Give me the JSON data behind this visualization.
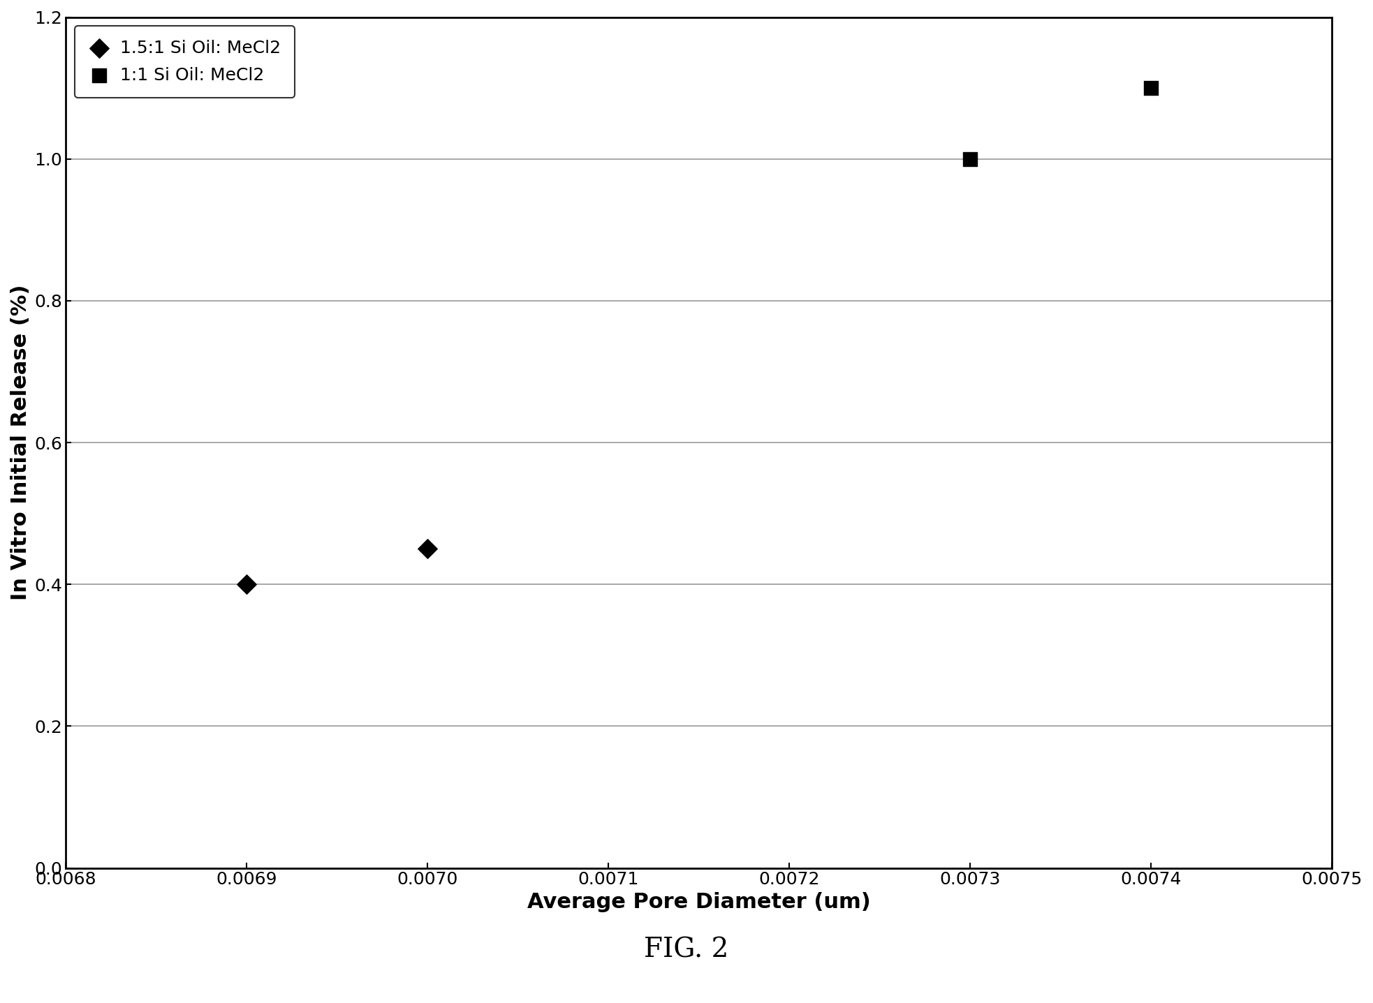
{
  "series1": {
    "label": "1.5:1 Si Oil: MeCl2",
    "x": [
      0.0069,
      0.007
    ],
    "y": [
      0.4,
      0.45
    ],
    "marker": "D",
    "color": "#000000",
    "markersize": 14
  },
  "series2": {
    "label": "1:1 Si Oil: MeCl2",
    "x": [
      0.0073,
      0.0074
    ],
    "y": [
      1.0,
      1.1
    ],
    "marker": "s",
    "color": "#000000",
    "markersize": 14
  },
  "xlabel": "Average Pore Diameter (um)",
  "ylabel": "In Vitro Initial Release (%)",
  "xlim": [
    0.0068,
    0.0075
  ],
  "ylim": [
    0.0,
    1.2
  ],
  "xticks": [
    0.0068,
    0.0069,
    0.007,
    0.0071,
    0.0072,
    0.0073,
    0.0074,
    0.0075
  ],
  "yticks": [
    0.0,
    0.2,
    0.4,
    0.6,
    0.8,
    1.0,
    1.2
  ],
  "fig_caption": "FIG. 2",
  "background_color": "#ffffff",
  "grid_color": "#999999"
}
